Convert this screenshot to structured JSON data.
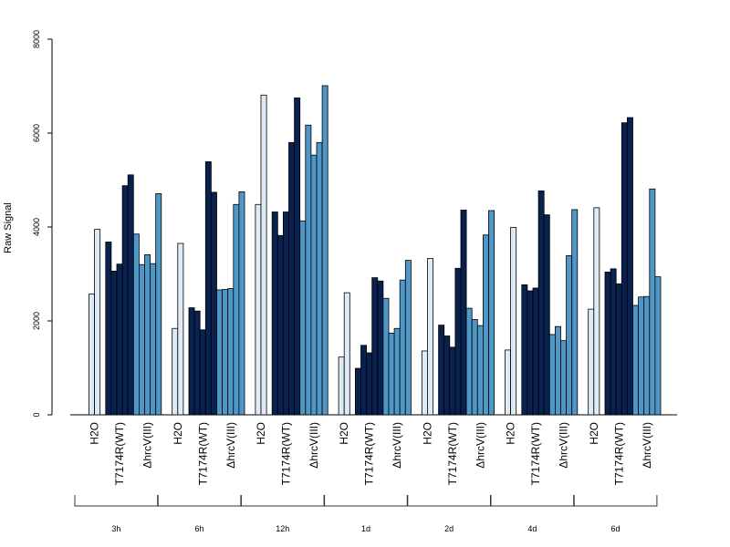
{
  "chart_data": {
    "type": "bar",
    "title": "",
    "xlabel": "",
    "ylabel": "Raw Signal",
    "ylim": [
      0,
      8000
    ],
    "yticks": [
      0,
      2000,
      4000,
      6000,
      8000
    ],
    "grid": false,
    "legend": "none",
    "sub_categories": [
      "H2O",
      "T7174R(WT)",
      "ΔhrcV(III)"
    ],
    "colors": {
      "H2O": "#deebf7",
      "T7174R(WT)": "#08214f",
      "ΔhrcV(III)": "#4f97c7"
    },
    "groups": [
      {
        "label": "3h",
        "values": [
          [
            2570,
            3950
          ],
          [
            3680,
            3060,
            3210,
            4880,
            5110
          ],
          [
            3850,
            3200,
            3410,
            3220,
            4710
          ]
        ]
      },
      {
        "label": "6h",
        "values": [
          [
            1840,
            3650
          ],
          [
            2280,
            2210,
            1810,
            5390,
            4740
          ],
          [
            2660,
            2670,
            2690,
            4480,
            4750
          ]
        ]
      },
      {
        "label": "12h",
        "values": [
          [
            4480,
            6810
          ],
          [
            4320,
            3820,
            4320,
            5800,
            6750
          ],
          [
            4130,
            6170,
            5530,
            5800,
            7010
          ]
        ]
      },
      {
        "label": "1d",
        "values": [
          [
            1230,
            2600
          ],
          [
            990,
            1480,
            1320,
            2920,
            2850
          ],
          [
            2480,
            1740,
            1840,
            2870,
            3290
          ]
        ]
      },
      {
        "label": "2d",
        "values": [
          [
            1360,
            3330
          ],
          [
            1910,
            1680,
            1440,
            3120,
            4360
          ],
          [
            2270,
            2030,
            1900,
            3830,
            4350
          ]
        ]
      },
      {
        "label": "4d",
        "values": [
          [
            1380,
            3990
          ],
          [
            2770,
            2640,
            2700,
            4770,
            4260
          ],
          [
            1710,
            1880,
            1580,
            3390,
            4370
          ]
        ]
      },
      {
        "label": "6d",
        "values": [
          [
            2250,
            4410
          ],
          [
            3040,
            3110,
            2790,
            6220,
            6330
          ],
          [
            2330,
            2510,
            2520,
            4810,
            2940
          ]
        ]
      }
    ]
  }
}
